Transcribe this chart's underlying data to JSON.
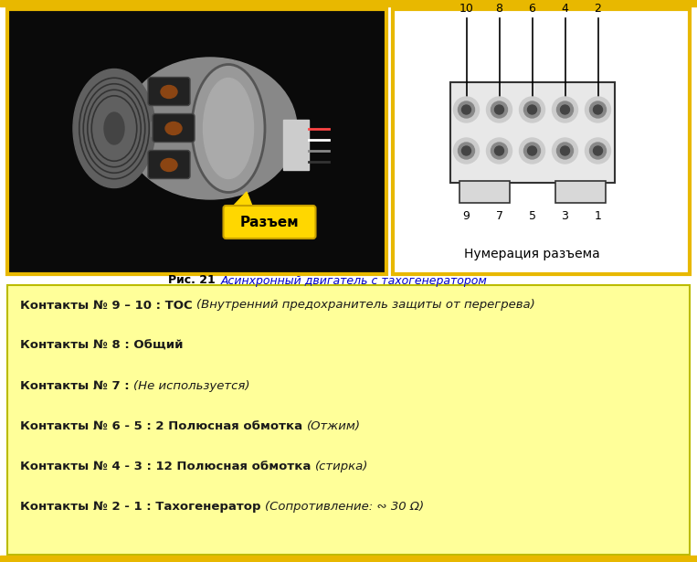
{
  "bg_color": "#ffffff",
  "top_border_color": "#e8b800",
  "bottom_border_color": "#e8b800",
  "image_panel_border_color": "#e8b800",
  "diagram_panel_border_color": "#e8b800",
  "caption_bold": "Рис. 21 ",
  "caption_italic": "Асинхронный двигатель с тахогенератором",
  "caption_italic_color": "#0000cc",
  "info_box_bg": "#ffff99",
  "info_box_border": "#cccc00",
  "info_lines": [
    {
      "bold_part": "Контакты № 9 – 10 : ТОС ",
      "italic_part": "(Внутренний предохранитель защиты от перегрева)"
    },
    {
      "bold_part": "Контакты № 8 : Общий",
      "italic_part": ""
    },
    {
      "bold_part": "Контакты № 7 : ",
      "italic_part": "(Не используется)"
    },
    {
      "bold_part": "Контакты № 6 - 5 : 2 Полюсная обмотка ",
      "italic_part": "(Отжим)"
    },
    {
      "bold_part": "Контакты № 4 - 3 : 12 Полюсная обмотка ",
      "italic_part": "(стирка)"
    },
    {
      "bold_part": "Контакты № 2 - 1 : Тахогенератор ",
      "italic_part": "(Сопротивление: ∾ 30 Ω)"
    }
  ],
  "razem_label": "Разъем",
  "numeraciya_label": "Нумерация разъема",
  "top_numbers_row": [
    "10",
    "8",
    "6",
    "4",
    "2"
  ],
  "bottom_numbers_row": [
    "9",
    "7",
    "5",
    "3",
    "1"
  ]
}
